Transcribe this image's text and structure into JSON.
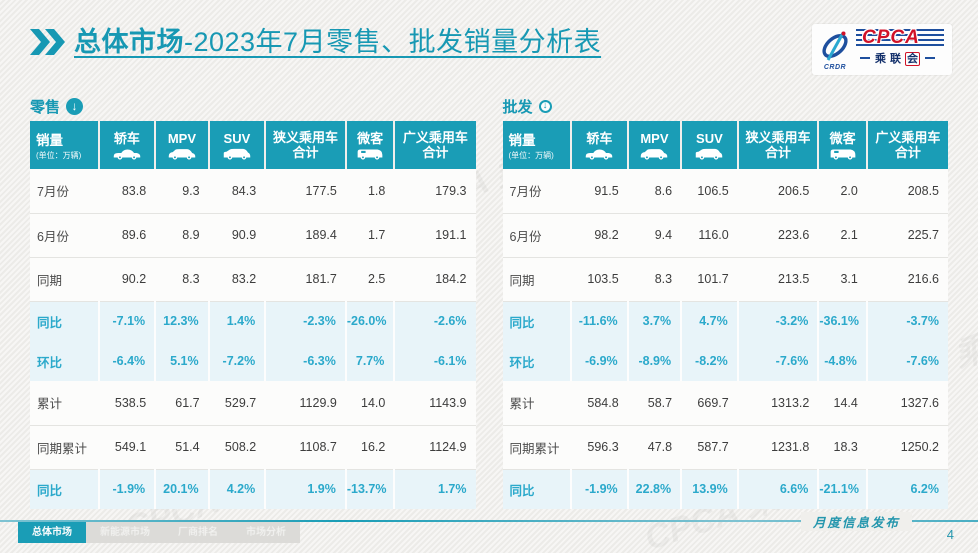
{
  "title": {
    "highlight": "总体市场",
    "rest": "-2023年7月零售、批发销量分析表"
  },
  "logo": {
    "cpca": "CPCA",
    "crdr": "CRDR",
    "cn_prefix": "乘联",
    "cn_boxed": "会"
  },
  "watermark": "CPCA 乘联会",
  "columns": {
    "sales": "销量",
    "unit": "(单位：万辆)",
    "cols": [
      {
        "label": "轿车",
        "icon": "sedan-icon"
      },
      {
        "label": "MPV",
        "icon": "mpv-icon"
      },
      {
        "label": "SUV",
        "icon": "suv-icon"
      },
      {
        "label": "狭义乘用车",
        "label2": "合计"
      },
      {
        "label": "微客",
        "icon": "van-icon"
      },
      {
        "label": "广义乘用车",
        "label2": "合计"
      }
    ]
  },
  "tables": [
    {
      "id": "retail",
      "label": "零售",
      "icon_style": "filled",
      "rows": [
        {
          "label": "7月份",
          "type": "num",
          "values": [
            "83.8",
            "9.3",
            "84.3",
            "177.5",
            "1.8",
            "179.3"
          ]
        },
        {
          "label": "6月份",
          "type": "num",
          "values": [
            "89.6",
            "8.9",
            "90.9",
            "189.4",
            "1.7",
            "191.1"
          ]
        },
        {
          "label": "同期",
          "type": "num",
          "values": [
            "90.2",
            "8.3",
            "83.2",
            "181.7",
            "2.5",
            "184.2"
          ]
        },
        {
          "label": "同比",
          "type": "pct",
          "values": [
            "-7.1%",
            "12.3%",
            "1.4%",
            "-2.3%",
            "-26.0%",
            "-2.6%"
          ]
        },
        {
          "label": "环比",
          "type": "pct",
          "values": [
            "-6.4%",
            "5.1%",
            "-7.2%",
            "-6.3%",
            "7.7%",
            "-6.1%"
          ]
        },
        {
          "label": "累计",
          "type": "num",
          "values": [
            "538.5",
            "61.7",
            "529.7",
            "1129.9",
            "14.0",
            "1143.9"
          ]
        },
        {
          "label": "同期累计",
          "type": "num",
          "values": [
            "549.1",
            "51.4",
            "508.2",
            "1108.7",
            "16.2",
            "1124.9"
          ]
        },
        {
          "label": "同比",
          "type": "pct",
          "values": [
            "-1.9%",
            "20.1%",
            "4.2%",
            "1.9%",
            "-13.7%",
            "1.7%"
          ]
        }
      ]
    },
    {
      "id": "wholesale",
      "label": "批发",
      "icon_style": "outline",
      "rows": [
        {
          "label": "7月份",
          "type": "num",
          "values": [
            "91.5",
            "8.6",
            "106.5",
            "206.5",
            "2.0",
            "208.5"
          ]
        },
        {
          "label": "6月份",
          "type": "num",
          "values": [
            "98.2",
            "9.4",
            "116.0",
            "223.6",
            "2.1",
            "225.7"
          ]
        },
        {
          "label": "同期",
          "type": "num",
          "values": [
            "103.5",
            "8.3",
            "101.7",
            "213.5",
            "3.1",
            "216.6"
          ]
        },
        {
          "label": "同比",
          "type": "pct",
          "values": [
            "-11.6%",
            "3.7%",
            "4.7%",
            "-3.2%",
            "-36.1%",
            "-3.7%"
          ]
        },
        {
          "label": "环比",
          "type": "pct",
          "values": [
            "-6.9%",
            "-8.9%",
            "-8.2%",
            "-7.6%",
            "-4.8%",
            "-7.6%"
          ]
        },
        {
          "label": "累计",
          "type": "num",
          "values": [
            "584.8",
            "58.7",
            "669.7",
            "1313.2",
            "14.4",
            "1327.6"
          ]
        },
        {
          "label": "同期累计",
          "type": "num",
          "values": [
            "596.3",
            "47.8",
            "587.7",
            "1231.8",
            "18.3",
            "1250.2"
          ]
        },
        {
          "label": "同比",
          "type": "pct",
          "values": [
            "-1.9%",
            "22.8%",
            "13.9%",
            "6.6%",
            "-21.1%",
            "6.2%"
          ]
        }
      ]
    }
  ],
  "footer": {
    "tabs": [
      {
        "label": "总体市场",
        "active": true
      },
      {
        "label": "新能源市场",
        "active": false
      },
      {
        "label": "厂商排名",
        "active": false
      },
      {
        "label": "市场分析",
        "active": false
      }
    ],
    "publication": "月度信息发布",
    "page": "4"
  },
  "colors": {
    "accent": "#1a9db6",
    "pct_text": "#2ba9cb",
    "pct_bg": "#e8f4f9",
    "cpca_red": "#d11228",
    "cpca_blue": "#1e4f9e"
  }
}
